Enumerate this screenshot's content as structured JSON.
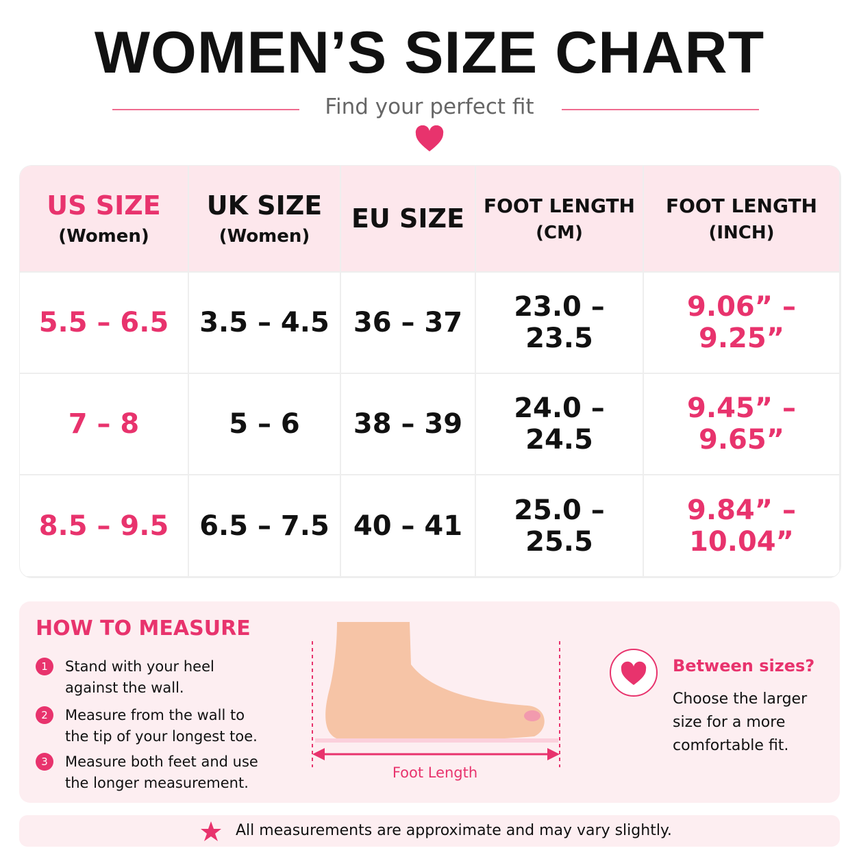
{
  "header": {
    "title": "WOMEN’S SIZE CHART",
    "subtitle": "Find your perfect fit"
  },
  "table": {
    "columns": [
      {
        "title": "US SIZE",
        "sub": "(Women)"
      },
      {
        "title": "UK SIZE",
        "sub": "(Women)"
      },
      {
        "title": "EU SIZE"
      },
      {
        "title": "FOOT LENGTH",
        "sub": "(CM)"
      },
      {
        "title": "FOOT LENGTH",
        "sub": "(INCH)"
      }
    ],
    "rows": [
      [
        "5.5 – 6.5",
        "3.5 – 4.5",
        "36 – 37",
        "23.0 – 23.5",
        "9.06” – 9.25”"
      ],
      [
        "7 – 8",
        "5 – 6",
        "38 – 39",
        "24.0 – 24.5",
        "9.45” – 9.65”"
      ],
      [
        "8.5 – 9.5",
        "6.5 – 7.5",
        "40 – 41",
        "25.0 – 25.5",
        "9.84” – 10.04”"
      ]
    ]
  },
  "measure": {
    "title": "HOW TO MEASURE",
    "steps": [
      {
        "number": "1",
        "text": "Stand with your heel against the wall."
      },
      {
        "number": "2",
        "text": "Measure from the wall to the tip of your longest toe."
      },
      {
        "number": "3",
        "text": "Measure both feet and use the longer measurement."
      }
    ]
  },
  "diagram": {
    "label": "Foot Length"
  },
  "tip": {
    "title": "Between sizes?",
    "text": "Choose the larger size for a more comfortable fit."
  },
  "footer": {
    "note": "All measurements are approximate and may vary slightly."
  }
}
